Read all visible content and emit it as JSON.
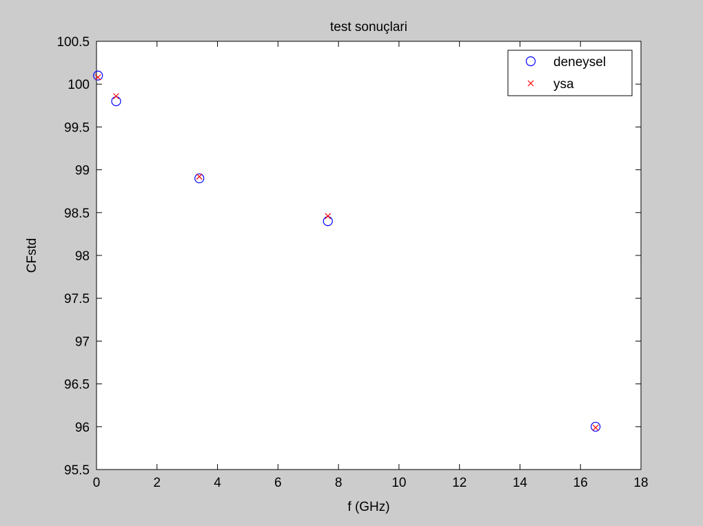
{
  "chart_data": {
    "type": "scatter",
    "title": "test sonuçlari",
    "xlabel": "f (GHz)",
    "ylabel": "CFstd",
    "xlim": [
      0,
      18
    ],
    "ylim": [
      95.5,
      100.5
    ],
    "xticks": [
      0,
      2,
      4,
      6,
      8,
      10,
      12,
      14,
      16,
      18
    ],
    "yticks": [
      95.5,
      96,
      96.5,
      97,
      97.5,
      98,
      98.5,
      99,
      99.5,
      100,
      100.5
    ],
    "grid": false,
    "legend_position": "top-right",
    "series": [
      {
        "name": "deneysel",
        "marker": "circle",
        "color": "#0000ff",
        "x": [
          0.05,
          0.65,
          3.4,
          7.65,
          16.5
        ],
        "y": [
          100.1,
          99.8,
          98.9,
          98.4,
          96.0
        ]
      },
      {
        "name": "ysa",
        "marker": "x",
        "color": "#ff0000",
        "x": [
          0.05,
          0.65,
          3.4,
          7.65,
          16.5
        ],
        "y": [
          100.08,
          99.86,
          98.92,
          98.46,
          95.99
        ]
      }
    ]
  }
}
